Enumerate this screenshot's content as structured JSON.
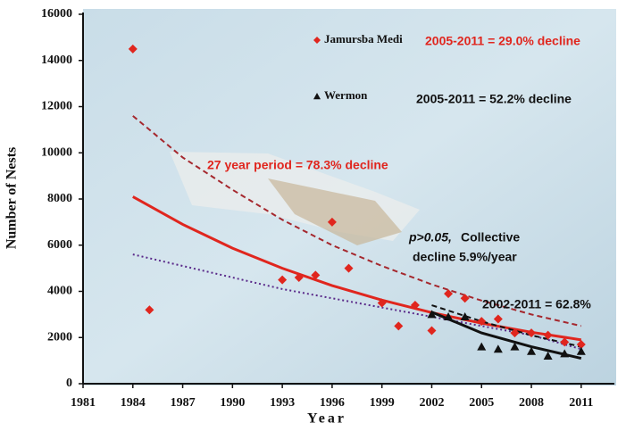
{
  "chart_data": {
    "type": "scatter",
    "y_label": "Number of Nests",
    "x_label": "Year",
    "xlim": [
      1981,
      2013
    ],
    "ylim": [
      0,
      16000
    ],
    "xticks": [
      1981,
      1984,
      1987,
      1990,
      1993,
      1996,
      1999,
      2002,
      2005,
      2008,
      2011
    ],
    "yticks": [
      0,
      2000,
      4000,
      6000,
      8000,
      10000,
      12000,
      14000,
      16000
    ],
    "series": [
      {
        "name": "Jamursba Medi",
        "color": "#e0261e",
        "marker": "diamond",
        "x": [
          1984,
          1985,
          1993,
          1994,
          1995,
          1996,
          1997,
          1999,
          2000,
          2001,
          2002,
          2003,
          2004,
          2005,
          2006,
          2007,
          2008,
          2009,
          2010,
          2011
        ],
        "values": [
          14500,
          3200,
          4500,
          4600,
          4700,
          7000,
          5000,
          3500,
          2500,
          3400,
          2300,
          3900,
          3700,
          2700,
          2800,
          2200,
          2200,
          2100,
          1800,
          1700
        ]
      },
      {
        "name": "Wermon",
        "color": "#111111",
        "marker": "triangle",
        "x": [
          2002,
          2003,
          2004,
          2005,
          2006,
          2007,
          2008,
          2009,
          2010,
          2011
        ],
        "values": [
          3000,
          2900,
          2900,
          1600,
          1500,
          1600,
          1400,
          1200,
          1300,
          1400
        ]
      }
    ],
    "trend_lines": [
      {
        "color": "#a5282e",
        "style": "dashed",
        "x": [
          1984,
          1987,
          1990,
          1993,
          1996,
          1999,
          2002,
          2005,
          2008,
          2011
        ],
        "values": [
          11600,
          9800,
          8400,
          7100,
          6000,
          5100,
          4300,
          3600,
          3000,
          2500
        ]
      },
      {
        "color": "#e0261e",
        "style": "solid",
        "x": [
          1984,
          1987,
          1990,
          1993,
          1996,
          1999,
          2002,
          2005,
          2008,
          2011
        ],
        "values": [
          8100,
          6900,
          5870,
          5000,
          4250,
          3620,
          3080,
          2620,
          2230,
          1900
        ]
      },
      {
        "color": "#5a2a8a",
        "style": "dotted",
        "x": [
          1984,
          1987,
          1990,
          1993,
          1996,
          1999,
          2002,
          2005,
          2008,
          2011
        ],
        "values": [
          5600,
          5100,
          4600,
          4100,
          3700,
          3300,
          2900,
          2500,
          2100,
          1500
        ]
      },
      {
        "color": "#111111",
        "style": "dashed",
        "x": [
          2002,
          2005,
          2008,
          2011
        ],
        "values": [
          3400,
          2700,
          2100,
          1600
        ]
      },
      {
        "color": "#111111",
        "style": "solid",
        "x": [
          2002,
          2005,
          2008,
          2011
        ],
        "values": [
          3100,
          2200,
          1600,
          1100
        ]
      }
    ],
    "annotations": [
      {
        "text": "2005-2011 = 29.0% decline",
        "color": "#e0261e"
      },
      {
        "text": "2005-2011 = 52.2% decline",
        "color": "#111111"
      },
      {
        "text": "27 year period = 78.3% decline",
        "color": "#e0261e"
      },
      {
        "text": "p>0.05,",
        "color": "#111111"
      },
      {
        "text": "Collective",
        "color": "#111111"
      },
      {
        "text": "decline 5.9%/year",
        "color": "#111111"
      },
      {
        "text": "2002-2011 = 62.8%",
        "color": "#111111"
      }
    ]
  }
}
